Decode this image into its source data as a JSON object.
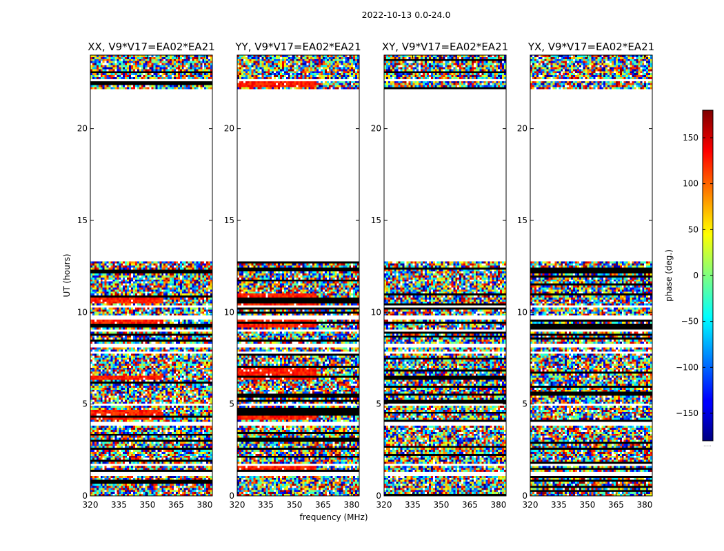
{
  "chart_data": {
    "type": "heatmap",
    "suptitle": "2022-10-13 0.0-24.0",
    "xlabel": "frequency (MHz)",
    "ylabel": "UT (hours)",
    "x_ticks": [
      320,
      335,
      350,
      365,
      380
    ],
    "xlim": [
      320,
      384
    ],
    "y_ticks": [
      0,
      5,
      10,
      15,
      20
    ],
    "ylim": [
      0,
      24
    ],
    "panels": [
      {
        "title": "XX, V9*V17=EA02*EA21",
        "coherent_bands": [
          [
            4.2,
            4.7
          ],
          [
            6.3,
            6.6
          ],
          [
            9.2,
            9.6
          ],
          [
            10.5,
            10.9
          ]
        ],
        "coherent_fmax": 358
      },
      {
        "title": "YY, V9*V17=EA02*EA21",
        "coherent_bands": [
          [
            1.2,
            1.6
          ],
          [
            4.1,
            4.7
          ],
          [
            6.3,
            7.0
          ],
          [
            9.2,
            9.7
          ],
          [
            10.4,
            11.0
          ],
          [
            22.3,
            22.6
          ]
        ],
        "coherent_fmax": 362
      },
      {
        "title": "XY, V9*V17=EA02*EA21",
        "coherent_bands": [],
        "coherent_fmax": 320
      },
      {
        "title": "YX, V9*V17=EA02*EA21",
        "coherent_bands": [],
        "coherent_fmax": 320
      }
    ],
    "data_gaps_hours": [
      [
        1.1,
        1.3
      ],
      [
        1.6,
        1.75
      ],
      [
        2.05,
        2.1
      ],
      [
        3.85,
        4.0
      ],
      [
        4.95,
        5.05
      ],
      [
        7.7,
        7.85
      ],
      [
        8.1,
        8.3
      ],
      [
        9.0,
        9.05
      ],
      [
        9.65,
        9.85
      ],
      [
        10.25,
        10.4
      ],
      [
        11.4,
        11.5
      ],
      [
        12.8,
        13.0
      ],
      [
        13.0,
        22.2
      ],
      [
        22.6,
        22.65
      ],
      [
        23.0,
        23.05
      ],
      [
        24.0,
        24.0
      ]
    ],
    "colorbar": {
      "label": "phase (deg.)",
      "ticks": [
        150,
        100,
        50,
        0,
        -50,
        -100,
        -150
      ],
      "range": [
        -180,
        180
      ],
      "colormap": "jet",
      "extra_label": "......"
    }
  }
}
